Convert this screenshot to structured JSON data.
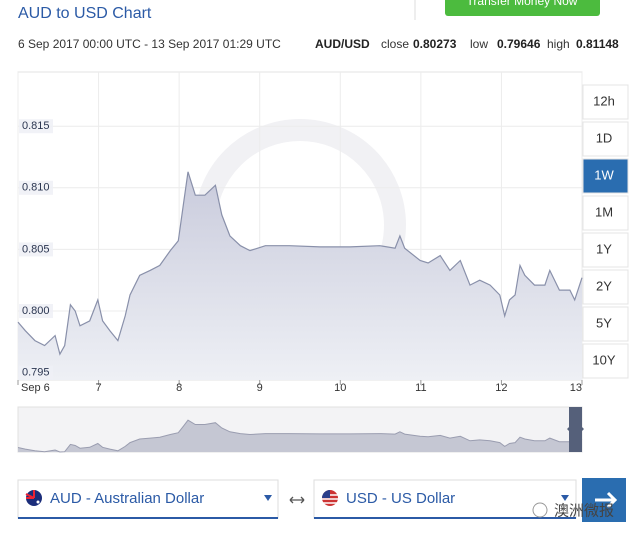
{
  "header": {
    "title": "AUD to USD Chart",
    "button": "Transfer Money Now",
    "range": "6 Sep 2017 00:00 UTC - 13 Sep 2017 01:29 UTC",
    "pair": "AUD/USD",
    "close_label": "close",
    "close": "0.80273",
    "low_label": "low",
    "low": "0.79646",
    "high_label": "high",
    "high": "0.81148"
  },
  "ranges": [
    "12h",
    "1D",
    "1W",
    "1M",
    "1Y",
    "2Y",
    "5Y",
    "10Y"
  ],
  "selected_range": "1W",
  "converter": {
    "from": "AUD - Australian Dollar",
    "to": "USD - US Dollar"
  },
  "watermark": "澳洲微报",
  "chart_data": {
    "type": "area",
    "color": "#8990aa",
    "grid": true,
    "x": [
      6.0,
      6.09,
      6.21,
      6.33,
      6.46,
      6.52,
      6.58,
      6.65,
      6.71,
      6.77,
      6.89,
      6.99,
      7.05,
      7.14,
      7.24,
      7.33,
      7.39,
      7.51,
      7.64,
      7.76,
      7.89,
      7.99,
      8.06,
      8.11,
      8.2,
      8.32,
      8.45,
      8.53,
      8.63,
      8.76,
      8.88,
      9.07,
      9.37,
      9.75,
      10.12,
      10.49,
      10.68,
      10.74,
      10.8,
      10.99,
      11.09,
      11.24,
      11.36,
      11.49,
      11.61,
      11.73,
      11.86,
      11.98,
      12.04,
      12.1,
      12.17,
      12.23,
      12.29,
      12.41,
      12.54,
      12.6,
      12.72,
      12.85,
      12.91,
      13.0
    ],
    "values": [
      0.7991,
      0.7984,
      0.7976,
      0.7972,
      0.798,
      0.7965,
      0.7972,
      0.8005,
      0.8,
      0.7988,
      0.7992,
      0.8009,
      0.7992,
      0.7984,
      0.7976,
      0.7996,
      0.8013,
      0.8029,
      0.8033,
      0.8037,
      0.8049,
      0.8057,
      0.809,
      0.8113,
      0.8094,
      0.8094,
      0.8102,
      0.8078,
      0.8061,
      0.8053,
      0.8049,
      0.8053,
      0.8053,
      0.8052,
      0.8052,
      0.8053,
      0.8051,
      0.8061,
      0.8051,
      0.8041,
      0.8039,
      0.8045,
      0.8033,
      0.8041,
      0.8021,
      0.8025,
      0.8021,
      0.8013,
      0.7996,
      0.8009,
      0.8013,
      0.8037,
      0.8029,
      0.8021,
      0.8021,
      0.8033,
      0.8017,
      0.8017,
      0.8009,
      0.8027
    ],
    "xlim": [
      6,
      13
    ],
    "ylim": [
      0.7944,
      0.8194
    ],
    "xticks": [
      {
        "value": 6,
        "label": "Sep 6"
      },
      7,
      8,
      9,
      10,
      11,
      12,
      13
    ],
    "yticks": [
      0.795,
      {
        "value": 0.8,
        "label": "0.800"
      },
      0.805,
      {
        "value": 0.81,
        "label": "0.810"
      },
      0.815
    ]
  }
}
